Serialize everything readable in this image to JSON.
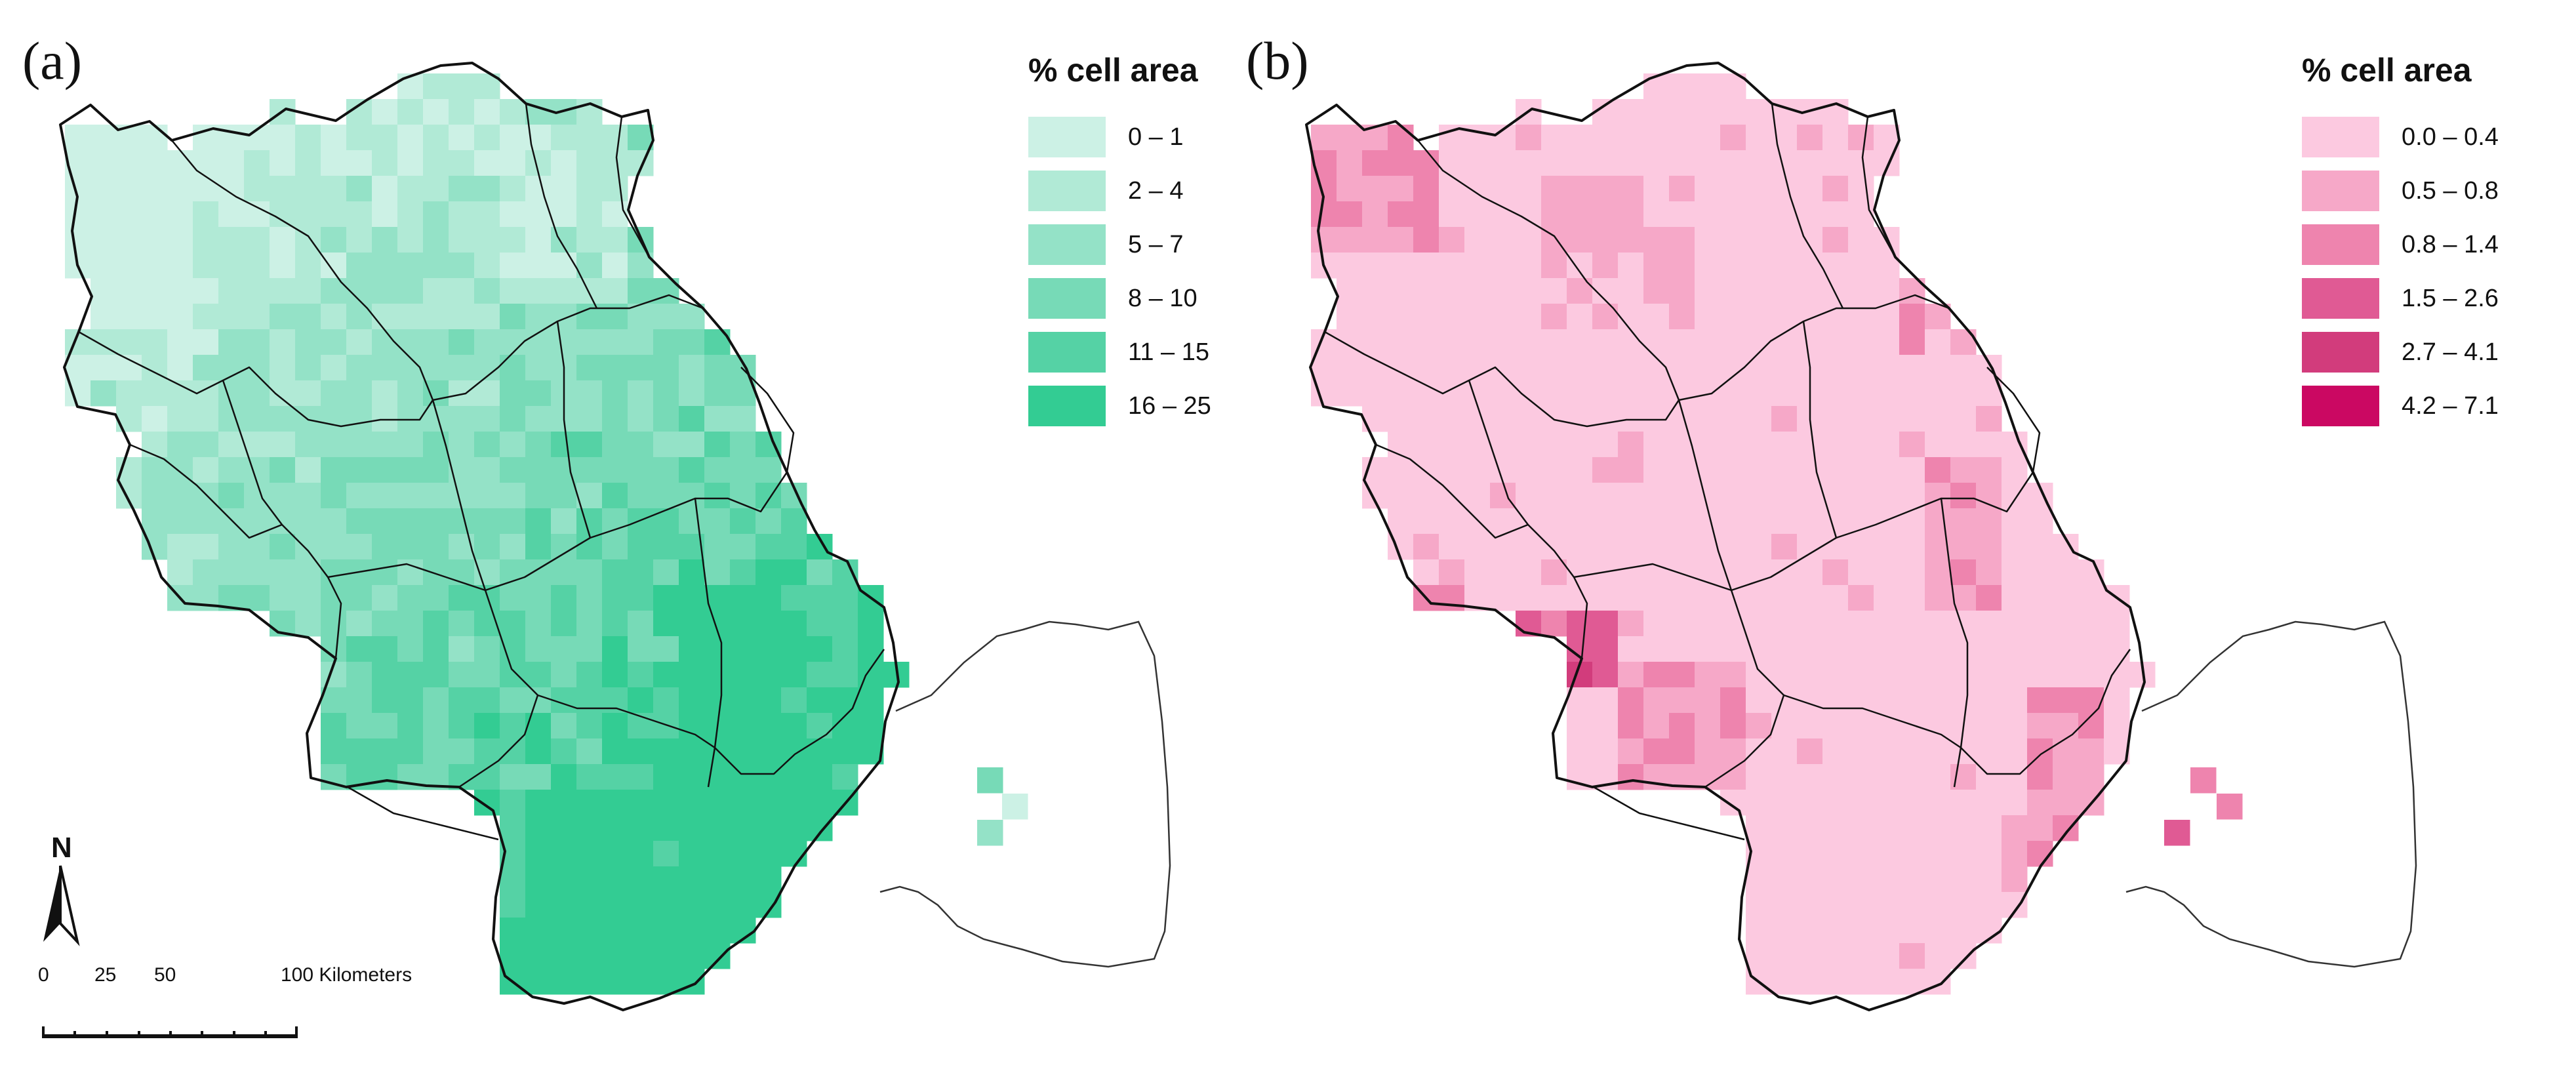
{
  "panels": {
    "a": {
      "label": "(a)",
      "legend_title": "% cell area",
      "legend": [
        {
          "label": "0 – 1",
          "color": "#ccf1e5"
        },
        {
          "label": "2 – 4",
          "color": "#b1ead6"
        },
        {
          "label": "5 – 7",
          "color": "#94e2c7"
        },
        {
          "label": "8 – 10",
          "color": "#77dab7"
        },
        {
          "label": "11 – 15",
          "color": "#55d2a5"
        },
        {
          "label": "16 – 25",
          "color": "#33cc93"
        }
      ]
    },
    "b": {
      "label": "(b)",
      "legend_title": "% cell area",
      "legend": [
        {
          "label": "0.0 – 0.4",
          "color": "#fcc9e0"
        },
        {
          "label": "0.5 – 0.8",
          "color": "#f6a8c8"
        },
        {
          "label": "0.8 – 1.4",
          "color": "#ee84ae"
        },
        {
          "label": "1.5 – 2.6",
          "color": "#e05a94"
        },
        {
          "label": "2.7 – 4.1",
          "color": "#d23c7c"
        },
        {
          "label": "4.2 – 7.1",
          "color": "#cb0862"
        }
      ]
    }
  },
  "north_arrow": {
    "label": "N"
  },
  "scale_bar": {
    "ticks": [
      "0",
      "25",
      "50"
    ],
    "end_label": "100 Kilometers"
  },
  "colors": {
    "boundary": "#111111",
    "outline": "#333333"
  }
}
